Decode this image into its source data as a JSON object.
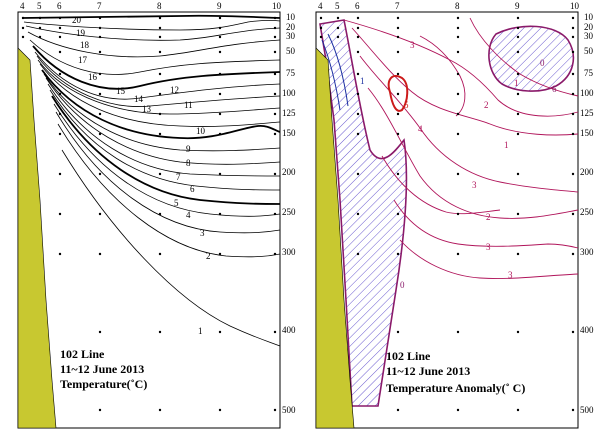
{
  "colors": {
    "coast": "#c8c830",
    "temperature_line": "#000000",
    "anomaly_pos": "#b0145a",
    "anomaly_neg": "#1a2ea0",
    "anomaly_strong": "#cc1a1a",
    "hatch": "#6a5ad0"
  },
  "panels": [
    {
      "id": "temperature",
      "station_labels": [
        "4",
        "5",
        "6",
        "7",
        "8",
        "9",
        "10"
      ],
      "depth_labels": [
        "10",
        "20",
        "30",
        "50",
        "75",
        "100",
        "125",
        "150",
        "200",
        "250",
        "300",
        "400",
        "500"
      ],
      "contour_labels": [
        "20",
        "19",
        "18",
        "17",
        "16",
        "15",
        "14",
        "13",
        "12",
        "11",
        "10",
        "9",
        "8",
        "7",
        "6",
        "5",
        "4",
        "3",
        "2",
        "1"
      ],
      "title": [
        "102 Line",
        "11~12 June 2013",
        "Temperature(˚C)"
      ]
    },
    {
      "id": "anomaly",
      "station_labels": [
        "4",
        "5",
        "6",
        "7",
        "8",
        "9",
        "10"
      ],
      "depth_labels": [
        "10",
        "20",
        "30",
        "50",
        "75",
        "100",
        "125",
        "150",
        "200",
        "250",
        "300",
        "400",
        "500"
      ],
      "contour_labels": [
        "3",
        "5",
        "4",
        "2",
        "1",
        "3",
        "2",
        "3",
        "3",
        "6",
        "0",
        "1",
        "0",
        "1"
      ],
      "title": [
        "102 Line",
        "11~12 June 2013",
        "Temperature Anomaly(˚ C)"
      ]
    }
  ]
}
